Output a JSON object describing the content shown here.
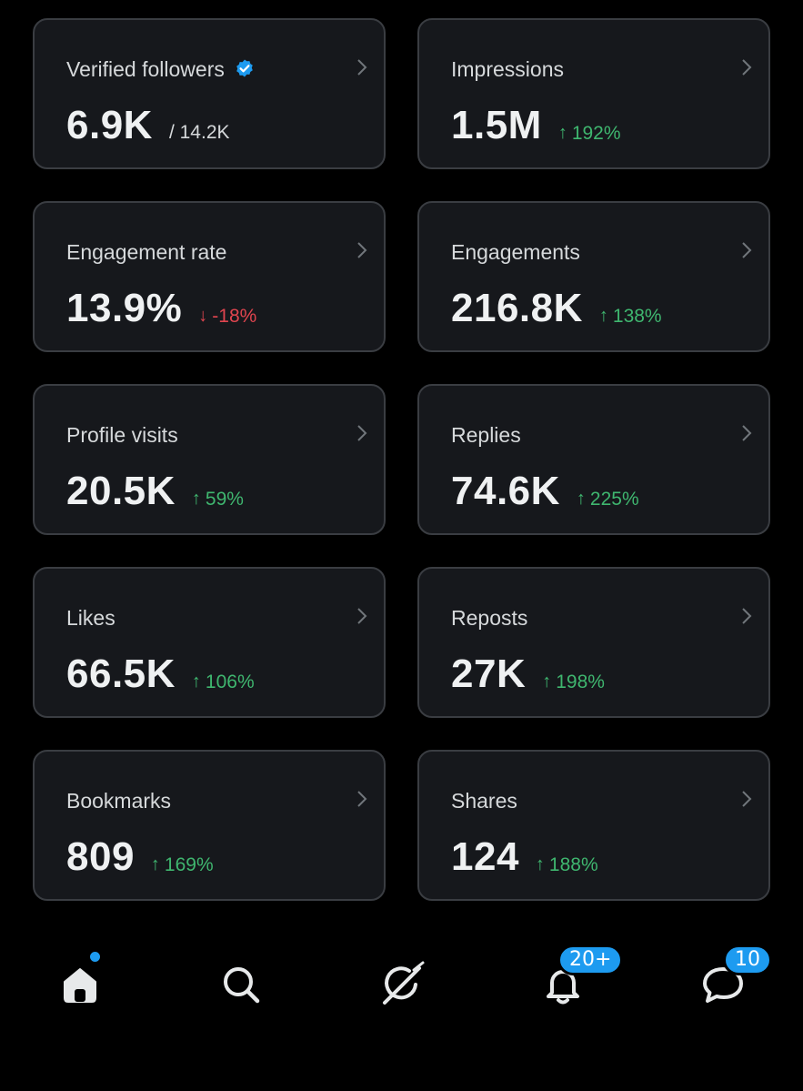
{
  "colors": {
    "background": "#000000",
    "card": "#16181c",
    "card_border": "#3a3d42",
    "positive": "#3fb66f",
    "negative": "#e0454f",
    "accent": "#1d9bf0"
  },
  "cards": [
    {
      "title": "Verified followers",
      "icon": "verified-badge-icon",
      "value": "6.9K",
      "sub_value": "/ 14.2K"
    },
    {
      "title": "Impressions",
      "value": "1.5M",
      "delta": "192%",
      "direction": "up"
    },
    {
      "title": "Engagement rate",
      "value": "13.9%",
      "delta": "-18%",
      "direction": "down"
    },
    {
      "title": "Engagements",
      "value": "216.8K",
      "delta": "138%",
      "direction": "up"
    },
    {
      "title": "Profile visits",
      "value": "20.5K",
      "delta": "59%",
      "direction": "up"
    },
    {
      "title": "Replies",
      "value": "74.6K",
      "delta": "225%",
      "direction": "up"
    },
    {
      "title": "Likes",
      "value": "66.5K",
      "delta": "106%",
      "direction": "up"
    },
    {
      "title": "Reposts",
      "value": "27K",
      "delta": "198%",
      "direction": "up"
    },
    {
      "title": "Bookmarks",
      "value": "809",
      "delta": "169%",
      "direction": "up"
    },
    {
      "title": "Shares",
      "value": "124",
      "delta": "188%",
      "direction": "up"
    }
  ],
  "arrows": {
    "up": "↑",
    "down": "↓"
  },
  "tabbar": {
    "items": [
      {
        "name": "home",
        "icon": "home-icon",
        "has_dot": true
      },
      {
        "name": "search",
        "icon": "search-icon"
      },
      {
        "name": "grok",
        "icon": "grok-icon"
      },
      {
        "name": "notifications",
        "icon": "bell-icon",
        "badge": "20+"
      },
      {
        "name": "messages",
        "icon": "chat-bubble-icon",
        "badge": "10"
      }
    ]
  }
}
